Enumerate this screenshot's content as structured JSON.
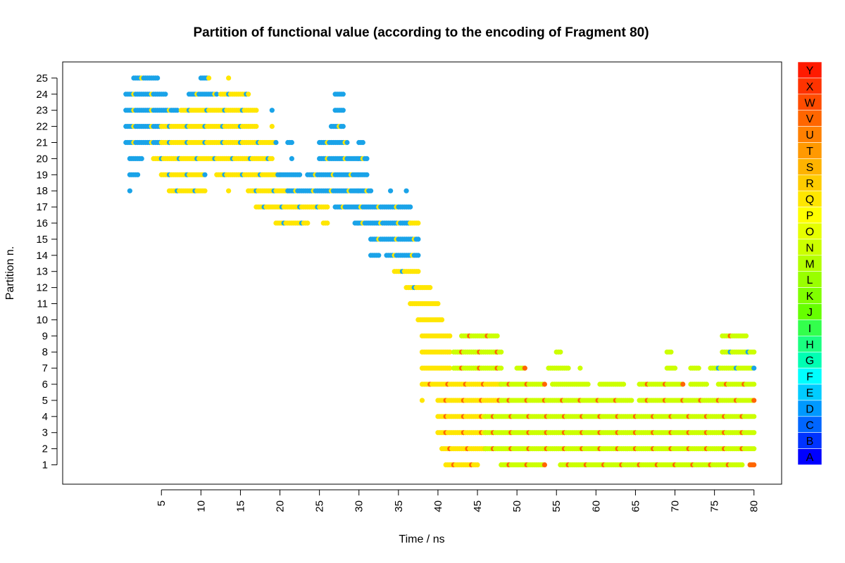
{
  "chart_data": {
    "type": "scatter",
    "title": "Partition of functional value (according to the encoding of Fragment 80)",
    "xlabel": "Time / ns",
    "ylabel": "Partition n.",
    "xlim": [
      -7.5,
      83.5
    ],
    "ylim": [
      -0.2,
      26.0
    ],
    "x_ticks": [
      5,
      10,
      15,
      20,
      25,
      30,
      35,
      40,
      45,
      50,
      55,
      60,
      65,
      70,
      75,
      80
    ],
    "y_ticks": [
      1,
      2,
      3,
      4,
      5,
      6,
      7,
      8,
      9,
      10,
      11,
      12,
      13,
      14,
      15,
      16,
      17,
      18,
      19,
      20,
      21,
      22,
      23,
      24,
      25
    ],
    "grid": false,
    "legend": {
      "placement": "right",
      "entries": [
        {
          "label": "Y",
          "color": "#ff1a00"
        },
        {
          "label": "X",
          "color": "#ff3300"
        },
        {
          "label": "W",
          "color": "#ff4c00"
        },
        {
          "label": "V",
          "color": "#ff6600"
        },
        {
          "label": "U",
          "color": "#ff8000"
        },
        {
          "label": "T",
          "color": "#ff9900"
        },
        {
          "label": "S",
          "color": "#ffb300"
        },
        {
          "label": "R",
          "color": "#ffcc00"
        },
        {
          "label": "Q",
          "color": "#ffe600"
        },
        {
          "label": "P",
          "color": "#ffff00"
        },
        {
          "label": "O",
          "color": "#e6ff00"
        },
        {
          "label": "N",
          "color": "#ccff00"
        },
        {
          "label": "M",
          "color": "#b3ff00"
        },
        {
          "label": "L",
          "color": "#99ff00"
        },
        {
          "label": "K",
          "color": "#80ff00"
        },
        {
          "label": "J",
          "color": "#66ff00"
        },
        {
          "label": "I",
          "color": "#33ff4c"
        },
        {
          "label": "H",
          "color": "#1aff80"
        },
        {
          "label": "G",
          "color": "#00ffb3"
        },
        {
          "label": "F",
          "color": "#00ffff"
        },
        {
          "label": "E",
          "color": "#00ccff"
        },
        {
          "label": "D",
          "color": "#0099ff"
        },
        {
          "label": "C",
          "color": "#0066ff"
        },
        {
          "label": "B",
          "color": "#0033ff"
        },
        {
          "label": "A",
          "color": "#0000ff"
        }
      ]
    },
    "series": [
      {
        "partition": 25,
        "segments": [
          {
            "from": 1.5,
            "to": 4.5,
            "color": "#1aa3e8",
            "accent": "#ffe600"
          },
          {
            "from": 10.0,
            "to": 11.0,
            "color": "#1aa3e8",
            "accent": "#ffe600"
          },
          {
            "from": 13.5,
            "to": 13.5,
            "color": "#ffe600",
            "accent": "#ffe600"
          }
        ]
      },
      {
        "partition": 24,
        "segments": [
          {
            "from": 0.5,
            "to": 5.5,
            "color": "#1aa3e8",
            "accent": "#ffe600"
          },
          {
            "from": 8.5,
            "to": 12.0,
            "color": "#1aa3e8",
            "accent": "#ffe600"
          },
          {
            "from": 12.5,
            "to": 16.0,
            "color": "#ffe600",
            "accent": "#1aa3e8"
          },
          {
            "from": 27.0,
            "to": 28.0,
            "color": "#1aa3e8",
            "accent": "#1aa3e8"
          }
        ]
      },
      {
        "partition": 23,
        "segments": [
          {
            "from": 0.5,
            "to": 7.0,
            "color": "#1aa3e8",
            "accent": "#ffe600"
          },
          {
            "from": 7.5,
            "to": 17.0,
            "color": "#ffe600",
            "accent": "#1aa3e8"
          },
          {
            "from": 19.0,
            "to": 19.0,
            "color": "#1aa3e8",
            "accent": "#1aa3e8"
          },
          {
            "from": 27.0,
            "to": 28.0,
            "color": "#1aa3e8",
            "accent": "#1aa3e8"
          }
        ]
      },
      {
        "partition": 22,
        "segments": [
          {
            "from": 0.5,
            "to": 5.0,
            "color": "#1aa3e8",
            "accent": "#ffe600"
          },
          {
            "from": 5.0,
            "to": 17.0,
            "color": "#ffe600",
            "accent": "#1aa3e8"
          },
          {
            "from": 19.0,
            "to": 19.0,
            "color": "#ffe600",
            "accent": "#ffe600"
          },
          {
            "from": 26.5,
            "to": 28.0,
            "color": "#1aa3e8",
            "accent": "#ffe600"
          }
        ]
      },
      {
        "partition": 21,
        "segments": [
          {
            "from": 0.5,
            "to": 5.0,
            "color": "#1aa3e8",
            "accent": "#ffe600"
          },
          {
            "from": 5.0,
            "to": 19.5,
            "color": "#ffe600",
            "accent": "#1aa3e8"
          },
          {
            "from": 21.0,
            "to": 21.5,
            "color": "#1aa3e8",
            "accent": "#1aa3e8"
          },
          {
            "from": 25.0,
            "to": 28.5,
            "color": "#1aa3e8",
            "accent": "#ffe600"
          },
          {
            "from": 30.0,
            "to": 30.5,
            "color": "#1aa3e8",
            "accent": "#1aa3e8"
          }
        ]
      },
      {
        "partition": 20,
        "segments": [
          {
            "from": 1.0,
            "to": 2.5,
            "color": "#1aa3e8",
            "accent": "#1aa3e8"
          },
          {
            "from": 4.0,
            "to": 19.0,
            "color": "#ffe600",
            "accent": "#1aa3e8"
          },
          {
            "from": 21.5,
            "to": 21.5,
            "color": "#1aa3e8",
            "accent": "#1aa3e8"
          },
          {
            "from": 25.0,
            "to": 31.0,
            "color": "#1aa3e8",
            "accent": "#ffe600"
          }
        ]
      },
      {
        "partition": 19,
        "segments": [
          {
            "from": 1.0,
            "to": 2.0,
            "color": "#1aa3e8",
            "accent": "#1aa3e8"
          },
          {
            "from": 5.0,
            "to": 10.5,
            "color": "#ffe600",
            "accent": "#1aa3e8"
          },
          {
            "from": 12.0,
            "to": 20.0,
            "color": "#ffe600",
            "accent": "#1aa3e8"
          },
          {
            "from": 20.0,
            "to": 22.5,
            "color": "#1aa3e8",
            "accent": "#1aa3e8"
          },
          {
            "from": 23.5,
            "to": 31.0,
            "color": "#1aa3e8",
            "accent": "#ffe600"
          }
        ]
      },
      {
        "partition": 18,
        "segments": [
          {
            "from": 1.0,
            "to": 1.0,
            "color": "#1aa3e8",
            "accent": "#1aa3e8"
          },
          {
            "from": 6.0,
            "to": 10.5,
            "color": "#ffe600",
            "accent": "#1aa3e8"
          },
          {
            "from": 13.5,
            "to": 13.5,
            "color": "#ffe600",
            "accent": "#ffe600"
          },
          {
            "from": 16.0,
            "to": 21.0,
            "color": "#ffe600",
            "accent": "#1aa3e8"
          },
          {
            "from": 21.0,
            "to": 31.5,
            "color": "#1aa3e8",
            "accent": "#ffe600"
          },
          {
            "from": 34.0,
            "to": 34.0,
            "color": "#1aa3e8",
            "accent": "#1aa3e8"
          },
          {
            "from": 36.0,
            "to": 36.0,
            "color": "#1aa3e8",
            "accent": "#1aa3e8"
          }
        ]
      },
      {
        "partition": 17,
        "segments": [
          {
            "from": 17.0,
            "to": 26.0,
            "color": "#ffe600",
            "accent": "#1aa3e8"
          },
          {
            "from": 27.0,
            "to": 36.5,
            "color": "#1aa3e8",
            "accent": "#ffe600"
          }
        ]
      },
      {
        "partition": 16,
        "segments": [
          {
            "from": 19.5,
            "to": 23.5,
            "color": "#ffe600",
            "accent": "#1aa3e8"
          },
          {
            "from": 25.5,
            "to": 26.0,
            "color": "#ffe600",
            "accent": "#ffe600"
          },
          {
            "from": 29.5,
            "to": 36.5,
            "color": "#1aa3e8",
            "accent": "#ffe600"
          },
          {
            "from": 36.5,
            "to": 37.5,
            "color": "#ffe600",
            "accent": "#ffe600"
          }
        ]
      },
      {
        "partition": 15,
        "segments": [
          {
            "from": 31.5,
            "to": 37.5,
            "color": "#1aa3e8",
            "accent": "#ffe600"
          }
        ]
      },
      {
        "partition": 14,
        "segments": [
          {
            "from": 31.5,
            "to": 32.5,
            "color": "#1aa3e8",
            "accent": "#1aa3e8"
          },
          {
            "from": 33.5,
            "to": 37.5,
            "color": "#1aa3e8",
            "accent": "#ffe600"
          }
        ]
      },
      {
        "partition": 13,
        "segments": [
          {
            "from": 34.5,
            "to": 37.5,
            "color": "#ffe600",
            "accent": "#1aa3e8"
          }
        ]
      },
      {
        "partition": 12,
        "segments": [
          {
            "from": 36.0,
            "to": 39.0,
            "color": "#ffe600",
            "accent": "#1aa3e8"
          }
        ]
      },
      {
        "partition": 11,
        "segments": [
          {
            "from": 36.5,
            "to": 40.0,
            "color": "#ffe600",
            "accent": "#ffe600"
          }
        ]
      },
      {
        "partition": 10,
        "segments": [
          {
            "from": 37.5,
            "to": 40.5,
            "color": "#ffe600",
            "accent": "#ffe600"
          }
        ]
      },
      {
        "partition": 9,
        "segments": [
          {
            "from": 38.0,
            "to": 41.5,
            "color": "#ffe600",
            "accent": "#ffe600"
          },
          {
            "from": 43.0,
            "to": 47.5,
            "color": "#ccff00",
            "accent": "#ff6600"
          },
          {
            "from": 76.0,
            "to": 79.0,
            "color": "#ccff00",
            "accent": "#ff6600"
          }
        ]
      },
      {
        "partition": 8,
        "segments": [
          {
            "from": 38.0,
            "to": 41.5,
            "color": "#ffe600",
            "accent": "#ffe600"
          },
          {
            "from": 42.0,
            "to": 48.0,
            "color": "#ccff00",
            "accent": "#ff6600"
          },
          {
            "from": 55.0,
            "to": 55.5,
            "color": "#ccff00",
            "accent": "#ccff00"
          },
          {
            "from": 69.0,
            "to": 69.5,
            "color": "#ccff00",
            "accent": "#ccff00"
          },
          {
            "from": 76.0,
            "to": 80.0,
            "color": "#ccff00",
            "accent": "#1aa3e8"
          }
        ]
      },
      {
        "partition": 7,
        "segments": [
          {
            "from": 38.0,
            "to": 41.5,
            "color": "#ffe600",
            "accent": "#ffe600"
          },
          {
            "from": 42.0,
            "to": 48.0,
            "color": "#ccff00",
            "accent": "#ff6600"
          },
          {
            "from": 50.0,
            "to": 51.0,
            "color": "#ccff00",
            "accent": "#ff6600"
          },
          {
            "from": 54.0,
            "to": 56.5,
            "color": "#ccff00",
            "accent": "#ccff00"
          },
          {
            "from": 58.0,
            "to": 58.0,
            "color": "#ccff00",
            "accent": "#ccff00"
          },
          {
            "from": 69.0,
            "to": 70.0,
            "color": "#ccff00",
            "accent": "#ccff00"
          },
          {
            "from": 72.0,
            "to": 73.0,
            "color": "#ccff00",
            "accent": "#ccff00"
          },
          {
            "from": 74.5,
            "to": 80.0,
            "color": "#ccff00",
            "accent": "#1aa3e8"
          }
        ]
      },
      {
        "partition": 6,
        "segments": [
          {
            "from": 38.0,
            "to": 48.0,
            "color": "#ffe600",
            "accent": "#ff6600"
          },
          {
            "from": 48.0,
            "to": 53.5,
            "color": "#ccff00",
            "accent": "#ff6600"
          },
          {
            "from": 54.5,
            "to": 59.0,
            "color": "#ccff00",
            "accent": "#ccff00"
          },
          {
            "from": 60.5,
            "to": 63.5,
            "color": "#ccff00",
            "accent": "#ccff00"
          },
          {
            "from": 65.5,
            "to": 71.0,
            "color": "#ccff00",
            "accent": "#ff6600"
          },
          {
            "from": 72.0,
            "to": 74.0,
            "color": "#ccff00",
            "accent": "#ccff00"
          },
          {
            "from": 75.5,
            "to": 80.0,
            "color": "#ccff00",
            "accent": "#ff6600"
          }
        ]
      },
      {
        "partition": 5,
        "segments": [
          {
            "from": 38.0,
            "to": 38.0,
            "color": "#ffe600",
            "accent": "#ffe600"
          },
          {
            "from": 40.0,
            "to": 48.0,
            "color": "#ffe600",
            "accent": "#ff6600"
          },
          {
            "from": 48.0,
            "to": 64.5,
            "color": "#ccff00",
            "accent": "#ff6600"
          },
          {
            "from": 65.5,
            "to": 80.0,
            "color": "#ccff00",
            "accent": "#ff6600"
          }
        ]
      },
      {
        "partition": 4,
        "segments": [
          {
            "from": 40.0,
            "to": 46.0,
            "color": "#ffe600",
            "accent": "#ff6600"
          },
          {
            "from": 46.0,
            "to": 80.0,
            "color": "#ccff00",
            "accent": "#ff6600"
          }
        ]
      },
      {
        "partition": 3,
        "segments": [
          {
            "from": 40.0,
            "to": 46.0,
            "color": "#ffe600",
            "accent": "#ff6600"
          },
          {
            "from": 46.0,
            "to": 80.0,
            "color": "#ccff00",
            "accent": "#ff6600"
          }
        ]
      },
      {
        "partition": 2,
        "segments": [
          {
            "from": 40.5,
            "to": 46.0,
            "color": "#ffe600",
            "accent": "#ff6600"
          },
          {
            "from": 46.0,
            "to": 80.0,
            "color": "#ccff00",
            "accent": "#ff6600"
          }
        ]
      },
      {
        "partition": 1,
        "segments": [
          {
            "from": 41.0,
            "to": 45.0,
            "color": "#ffe600",
            "accent": "#ff6600"
          },
          {
            "from": 48.0,
            "to": 53.5,
            "color": "#ccff00",
            "accent": "#ff6600"
          },
          {
            "from": 55.5,
            "to": 78.5,
            "color": "#ccff00",
            "accent": "#ff6600"
          },
          {
            "from": 79.5,
            "to": 80.0,
            "color": "#ff6600",
            "accent": "#ff6600"
          }
        ]
      }
    ]
  }
}
